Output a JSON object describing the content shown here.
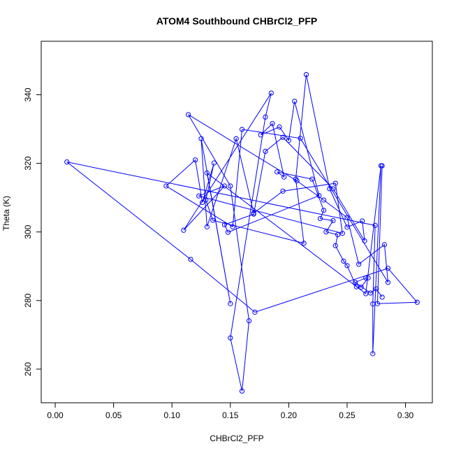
{
  "chart_data": {
    "type": "line",
    "title": "ATOM4 Southbound CHBrCl2_PFP",
    "xlabel": "CHBrCl2_PFP",
    "ylabel": "Theta (K)",
    "xlim": [
      -0.012,
      0.323
    ],
    "ylim": [
      250.2,
      355.6
    ],
    "xticks": [
      0.0,
      0.05,
      0.1,
      0.15,
      0.2,
      0.25,
      0.3
    ],
    "xtick_labels": [
      "0.00",
      "0.05",
      "0.10",
      "0.15",
      "0.20",
      "0.25",
      "0.30"
    ],
    "yticks": [
      260,
      280,
      300,
      320,
      340
    ],
    "ytick_labels": [
      "260",
      "280",
      "300",
      "320",
      "340"
    ],
    "grid": false,
    "color": "#0000ff",
    "markers": "open-circle",
    "series": [
      {
        "points": [
          [
            0.28,
            319.3
          ],
          [
            0.276,
            279.1
          ],
          [
            0.31,
            279.5
          ],
          [
            0.285,
            289.4
          ],
          [
            0.171,
            276.6
          ],
          [
            0.116,
            292.0
          ],
          [
            0.01,
            320.4
          ],
          [
            0.274,
            301.9
          ],
          [
            0.272,
            279.0
          ],
          [
            0.272,
            264.5
          ],
          [
            0.279,
            319.3
          ],
          [
            0.266,
            282.0
          ],
          [
            0.13,
            317.2
          ],
          [
            0.15,
            279.1
          ],
          [
            0.125,
            327.2
          ],
          [
            0.13,
            301.5
          ],
          [
            0.155,
            327.2
          ],
          [
            0.17,
            305.5
          ],
          [
            0.195,
            311.9
          ],
          [
            0.24,
            314.2
          ],
          [
            0.246,
            299.6
          ],
          [
            0.123,
            310.5
          ],
          [
            0.145,
            313.4
          ],
          [
            0.11,
            300.5
          ],
          [
            0.185,
            340.5
          ],
          [
            0.18,
            333.5
          ],
          [
            0.15,
            269.1
          ],
          [
            0.16,
            253.6
          ],
          [
            0.166,
            274.1
          ],
          [
            0.15,
            313.4
          ],
          [
            0.114,
            334.2
          ],
          [
            0.207,
            314.9
          ],
          [
            0.23,
            309.3
          ],
          [
            0.25,
            304.2
          ],
          [
            0.26,
            290.6
          ],
          [
            0.282,
            296.3
          ],
          [
            0.285,
            285.3
          ],
          [
            0.21,
            327.3
          ],
          [
            0.16,
            329.9
          ],
          [
            0.152,
            301.5
          ],
          [
            0.095,
            313.4
          ],
          [
            0.12,
            321.0
          ],
          [
            0.126,
            308.6
          ],
          [
            0.136,
            320.1
          ],
          [
            0.129,
            309.3
          ],
          [
            0.135,
            303.4
          ],
          [
            0.213,
            296.7
          ],
          [
            0.206,
            315.4
          ],
          [
            0.215,
            345.9
          ],
          [
            0.235,
            312.6
          ],
          [
            0.25,
            301.4
          ],
          [
            0.263,
            303.2
          ],
          [
            0.265,
            297.4
          ],
          [
            0.238,
            312.6
          ],
          [
            0.195,
            327.6
          ],
          [
            0.18,
            323.5
          ],
          [
            0.17,
            305.2
          ],
          [
            0.145,
            302.1
          ],
          [
            0.148,
            299.9
          ],
          [
            0.226,
            310.6
          ],
          [
            0.205,
            338.1
          ],
          [
            0.2,
            326.7
          ],
          [
            0.192,
            330.6
          ],
          [
            0.176,
            328.3
          ],
          [
            0.186,
            331.6
          ],
          [
            0.196,
            316.0
          ],
          [
            0.19,
            317.5
          ],
          [
            0.22,
            315.4
          ],
          [
            0.23,
            306.3
          ],
          [
            0.227,
            303.9
          ],
          [
            0.238,
            303.3
          ],
          [
            0.232,
            300.0
          ],
          [
            0.242,
            299.2
          ],
          [
            0.24,
            296.0
          ],
          [
            0.247,
            291.5
          ],
          [
            0.25,
            290.2
          ],
          [
            0.258,
            284.0
          ],
          [
            0.262,
            283.9
          ],
          [
            0.268,
            286.6
          ],
          [
            0.266,
            286.6
          ],
          [
            0.257,
            285.3
          ],
          [
            0.27,
            282.2
          ],
          [
            0.275,
            283.4
          ],
          [
            0.28,
            281.0
          ]
        ]
      }
    ]
  }
}
